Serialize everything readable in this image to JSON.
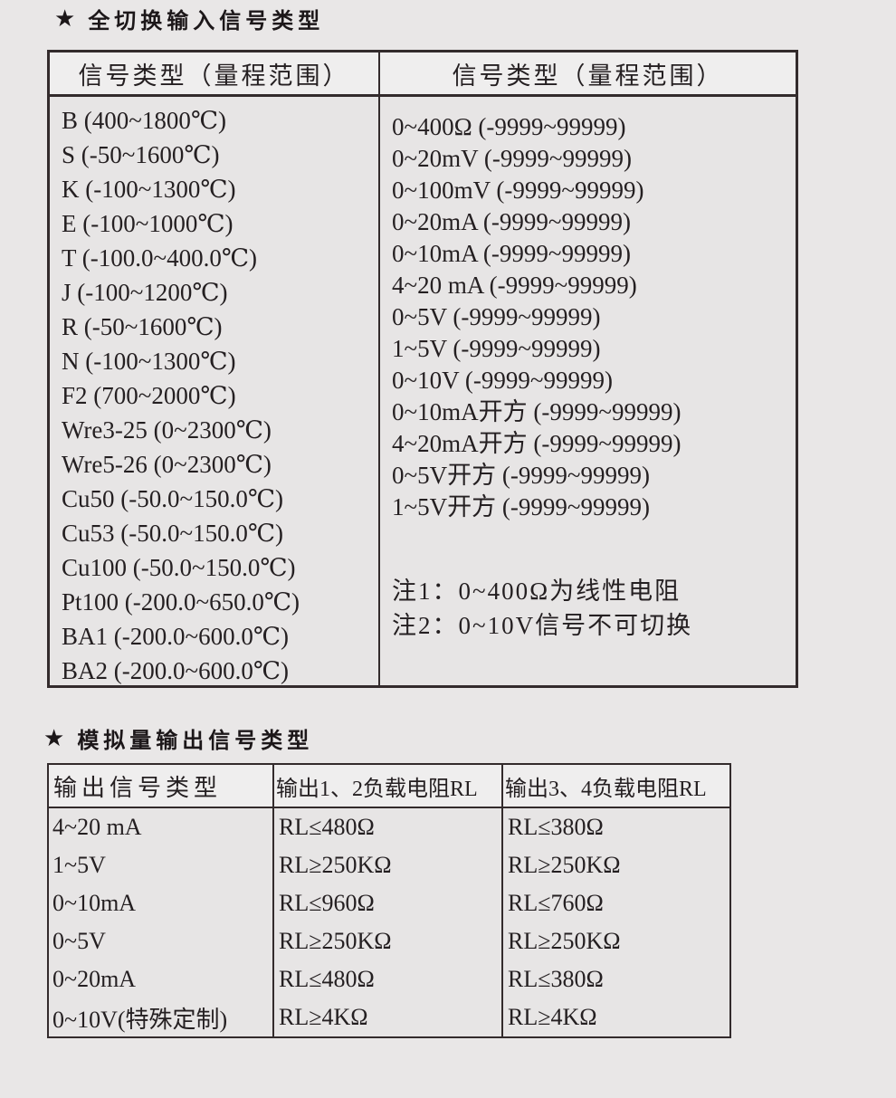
{
  "page": {
    "colors": {
      "background": "#e9e7e7",
      "header_cell_background": "#efeeee",
      "table_border": "#332b2c",
      "text": "#241f21"
    }
  },
  "section1": {
    "bullet": "★",
    "title": "全切换输入信号类型",
    "table": {
      "headers": [
        "信号类型（量程范围）",
        "信号类型（量程范围）"
      ],
      "left_rows": [
        "B (400~1800℃)",
        "S (-50~1600℃)",
        "K (-100~1300℃)",
        "E (-100~1000℃)",
        "T (-100.0~400.0℃)",
        "J (-100~1200℃)",
        "R (-50~1600℃)",
        "N (-100~1300℃)",
        "F2 (700~2000℃)",
        "Wre3-25 (0~2300℃)",
        "Wre5-26 (0~2300℃)",
        "Cu50 (-50.0~150.0℃)",
        "Cu53 (-50.0~150.0℃)",
        "Cu100 (-50.0~150.0℃)",
        "Pt100 (-200.0~650.0℃)",
        "BA1 (-200.0~600.0℃)",
        "BA2 (-200.0~600.0℃)"
      ],
      "right_rows": [
        "0~400Ω (-9999~99999)",
        "0~20mV (-9999~99999)",
        "0~100mV (-9999~99999)",
        "0~20mA (-9999~99999)",
        "0~10mA (-9999~99999)",
        "4~20 mA (-9999~99999)",
        "0~5V (-9999~99999)",
        "1~5V (-9999~99999)",
        "0~10V (-9999~99999)",
        "0~10mA开方 (-9999~99999)",
        "4~20mA开方 (-9999~99999)",
        "0~5V开方 (-9999~99999)",
        "1~5V开方 (-9999~99999)"
      ],
      "notes": [
        "注1：0~400Ω为线性电阻",
        "注2：0~10V信号不可切换"
      ]
    }
  },
  "section2": {
    "bullet": "★",
    "title": "模拟量输出信号类型",
    "table": {
      "headers": [
        "输出信号类型",
        "输出1、2负载电阻RL",
        "输出3、4负载电阻RL"
      ],
      "rows": [
        [
          "4~20 mA",
          "RL≤480Ω",
          "RL≤380Ω"
        ],
        [
          "1~5V",
          "RL≥250KΩ",
          "RL≥250KΩ"
        ],
        [
          "0~10mA",
          "RL≤960Ω",
          "RL≤760Ω"
        ],
        [
          "0~5V",
          "RL≥250KΩ",
          "RL≥250KΩ"
        ],
        [
          "0~20mA",
          "RL≤480Ω",
          "RL≤380Ω"
        ],
        [
          "0~10V(特殊定制)",
          "RL≥4KΩ",
          "RL≥4KΩ"
        ]
      ]
    }
  }
}
